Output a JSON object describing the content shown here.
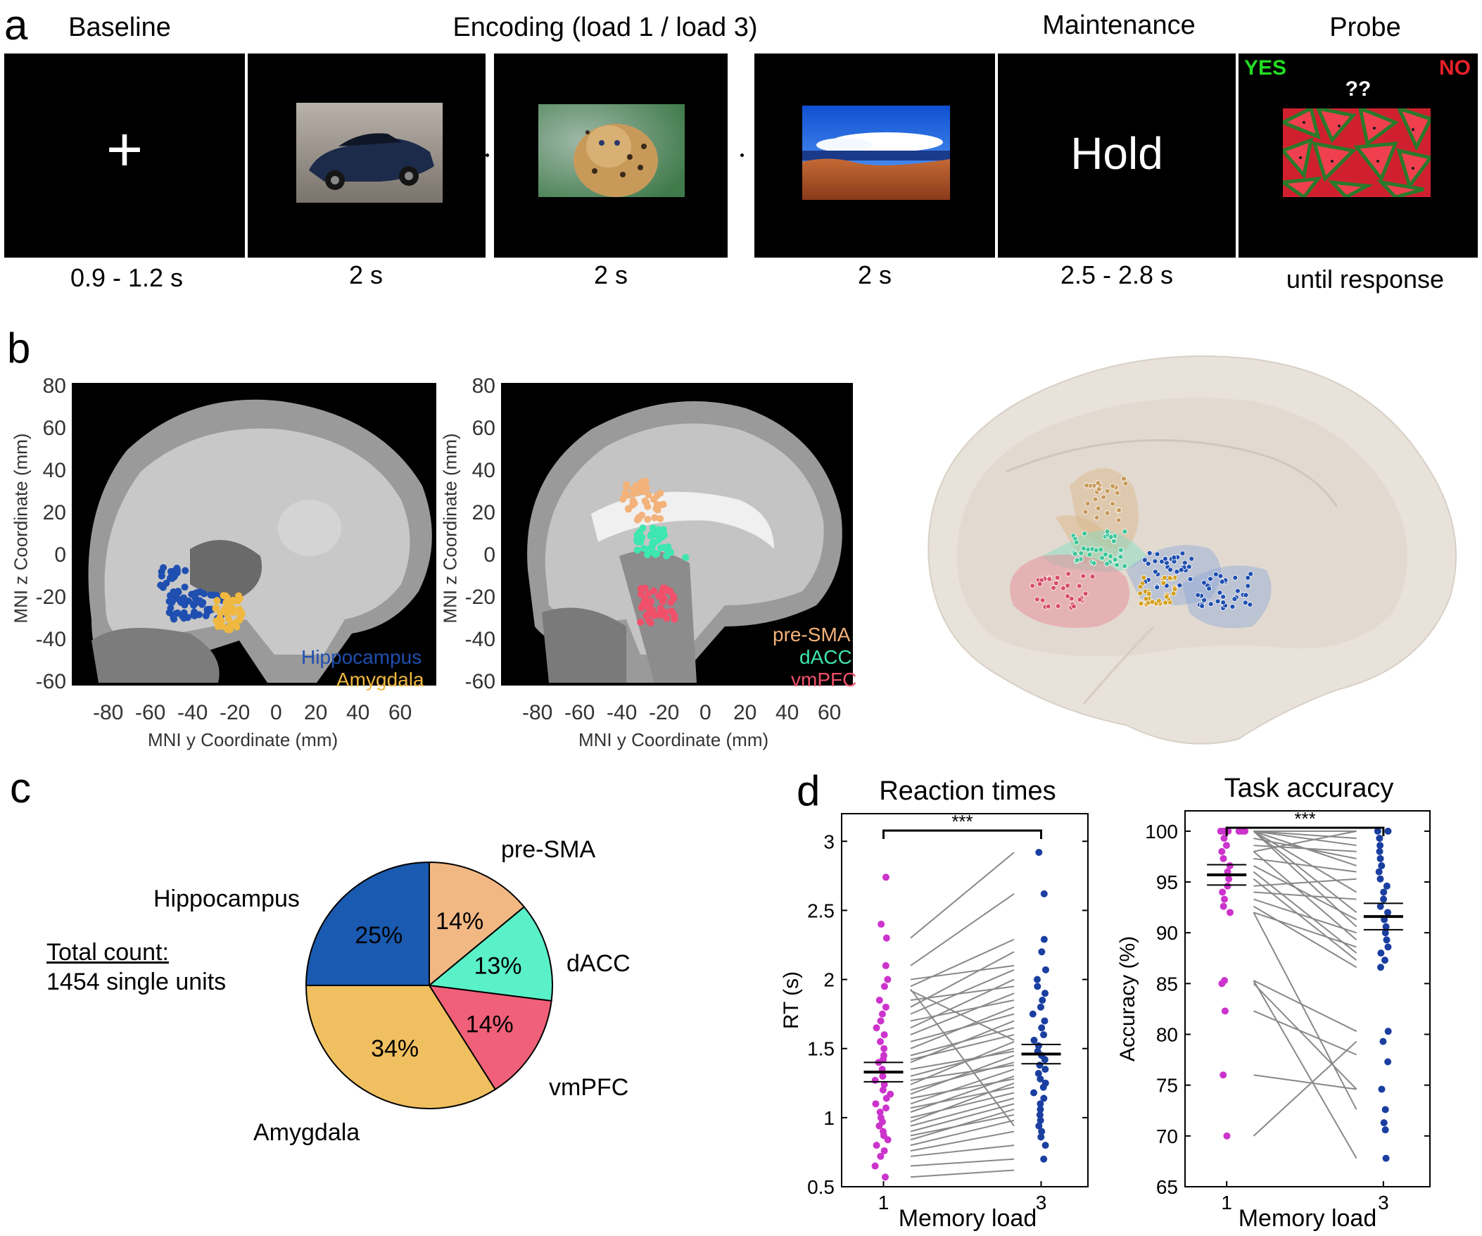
{
  "panel_a": {
    "letter": "a",
    "headers": {
      "baseline": "Baseline",
      "encoding": "Encoding (load 1 / load 3)",
      "maintenance": "Maintenance",
      "probe": "Probe"
    },
    "durations": [
      "0.9 - 1.2 s",
      "2 s",
      "2 s",
      "2 s",
      "2.5 - 2.8 s",
      "until response"
    ],
    "fixation": "+",
    "hold": "Hold",
    "probe_yes": "YES",
    "probe_no": "NO",
    "probe_question": "??",
    "colors": {
      "yes": "#22dd22",
      "no": "#e8202a"
    }
  },
  "panel_b": {
    "letter": "b",
    "left": {
      "ylabel": "MNI z Coordinate (mm)",
      "xlabel": "MNI y Coordinate (mm)",
      "yticks": [
        "80",
        "60",
        "40",
        "20",
        "0",
        "-20",
        "-40",
        "-60"
      ],
      "xticks": [
        "-80",
        "-60",
        "-40",
        "-20",
        "0",
        "20",
        "40",
        "60"
      ],
      "legend": [
        {
          "name": "Hippocampus",
          "color": "#1f4fb0"
        },
        {
          "name": "Amygdala",
          "color": "#f0b840"
        }
      ]
    },
    "right": {
      "ylabel": "MNI z Coordinate (mm)",
      "xlabel": "MNI y Coordinate (mm)",
      "yticks": [
        "80",
        "60",
        "40",
        "20",
        "0",
        "-20",
        "-40",
        "-60"
      ],
      "xticks": [
        "-80",
        "-60",
        "-40",
        "-20",
        "0",
        "20",
        "40",
        "60"
      ],
      "legend": [
        {
          "name": "pre-SMA",
          "color": "#f2b27a"
        },
        {
          "name": "dACC",
          "color": "#3ee6b0"
        },
        {
          "name": "vmPFC",
          "color": "#f0506a"
        }
      ]
    }
  },
  "panel_c": {
    "letter": "c",
    "total_title": "Total count:",
    "total_value": "1454 single units",
    "chart_data": {
      "type": "pie",
      "slices": [
        {
          "label": "pre-SMA",
          "percent_label": "14%",
          "value": 14,
          "color": "#f2b884"
        },
        {
          "label": "dACC",
          "percent_label": "13%",
          "value": 13,
          "color": "#5af0c8"
        },
        {
          "label": "vmPFC",
          "percent_label": "14%",
          "value": 14,
          "color": "#f06078"
        },
        {
          "label": "Amygdala",
          "percent_label": "34%",
          "value": 34,
          "color": "#f0c060"
        },
        {
          "label": "Hippocampus",
          "percent_label": "25%",
          "value": 25,
          "color": "#1a5ab0"
        }
      ]
    }
  },
  "panel_d": {
    "letter": "d",
    "chart_data": [
      {
        "type": "scatter",
        "title": "Reaction times",
        "xlabel": "Memory load",
        "ylabel": "RT (s)",
        "xticks": [
          "1",
          "3"
        ],
        "yticks": [
          "0.5",
          "1",
          "1.5",
          "2",
          "2.5",
          "3"
        ],
        "ylim": [
          0.5,
          3.2
        ],
        "significance": "***",
        "series": [
          {
            "name": "1",
            "color": "#cc33cc",
            "mean": 1.33,
            "sem": 0.07,
            "values": [
              2.74,
              2.4,
              2.3,
              2.1,
              2.0,
              1.95,
              1.85,
              1.8,
              1.75,
              1.7,
              1.65,
              1.6,
              1.55,
              1.5,
              1.45,
              1.42,
              1.4,
              1.35,
              1.3,
              1.27,
              1.24,
              1.2,
              1.17,
              1.14,
              1.1,
              1.07,
              1.04,
              1.0,
              0.97,
              0.94,
              0.9,
              0.87,
              0.84,
              0.8,
              0.76,
              0.72,
              0.65,
              0.57
            ]
          },
          {
            "name": "3",
            "color": "#1a3fa0",
            "mean": 1.46,
            "sem": 0.07,
            "values": [
              2.92,
              2.62,
              2.29,
              2.2,
              2.07,
              2.0,
              1.95,
              1.9,
              1.85,
              1.8,
              1.75,
              1.7,
              1.65,
              1.6,
              1.56,
              1.52,
              1.48,
              1.45,
              1.42,
              1.38,
              1.35,
              1.32,
              1.28,
              1.25,
              1.22,
              1.18,
              1.14,
              1.1,
              1.06,
              1.02,
              0.98,
              0.94,
              0.9,
              0.86,
              0.8,
              0.7
            ]
          }
        ],
        "pairs": [
          [
            0.57,
            0.62
          ],
          [
            0.65,
            0.7
          ],
          [
            0.72,
            0.8
          ],
          [
            0.76,
            0.9
          ],
          [
            0.8,
            0.98
          ],
          [
            0.84,
            1.06
          ],
          [
            0.87,
            1.02
          ],
          [
            0.9,
            1.1
          ],
          [
            0.94,
            1.14
          ],
          [
            0.97,
            1.25
          ],
          [
            1.0,
            1.18
          ],
          [
            1.04,
            1.3
          ],
          [
            1.07,
            1.22
          ],
          [
            1.1,
            1.35
          ],
          [
            1.14,
            1.28
          ],
          [
            1.17,
            1.45
          ],
          [
            1.2,
            1.4
          ],
          [
            1.24,
            1.55
          ],
          [
            1.27,
            1.38
          ],
          [
            1.3,
            1.5
          ],
          [
            1.35,
            1.48
          ],
          [
            1.4,
            1.7
          ],
          [
            1.42,
            1.6
          ],
          [
            1.45,
            1.65
          ],
          [
            1.5,
            1.8
          ],
          [
            1.55,
            1.75
          ],
          [
            1.6,
            1.9
          ],
          [
            1.65,
            2.0
          ],
          [
            1.7,
            1.85
          ],
          [
            1.75,
            2.07
          ],
          [
            1.8,
            2.2
          ],
          [
            1.85,
            1.95
          ],
          [
            1.95,
            2.29
          ],
          [
            2.0,
            2.1
          ],
          [
            2.1,
            2.62
          ],
          [
            2.3,
            2.92
          ],
          [
            1.93,
            0.94
          ],
          [
            1.92,
            1.56
          ]
        ]
      },
      {
        "type": "scatter",
        "title": "Task accuracy",
        "xlabel": "Memory load",
        "ylabel": "Accuracy (%)",
        "xticks": [
          "1",
          "3"
        ],
        "yticks": [
          "65",
          "70",
          "75",
          "80",
          "85",
          "90",
          "95",
          "100"
        ],
        "ylim": [
          65,
          102
        ],
        "significance": "***",
        "series": [
          {
            "name": "1",
            "color": "#cc33cc",
            "mean": 95.7,
            "sem": 1.0,
            "values": [
              100,
              100,
              100,
              100,
              100,
              100,
              100,
              99.3,
              98.6,
              98.0,
              97.3,
              96.6,
              96.0,
              95.3,
              94.6,
              94.0,
              93.3,
              92.6,
              92.0,
              85.3,
              85.0,
              82.3,
              76.0,
              70.0
            ]
          },
          {
            "name": "3",
            "color": "#1a3fa0",
            "mean": 91.6,
            "sem": 1.3,
            "values": [
              100,
              100,
              99.3,
              98.6,
              98.0,
              97.3,
              96.6,
              96.0,
              95.3,
              94.6,
              94.0,
              93.3,
              92.6,
              92.0,
              91.3,
              90.6,
              90.0,
              89.3,
              88.6,
              88.0,
              87.3,
              86.6,
              80.3,
              79.3,
              77.3,
              74.6,
              72.6,
              71.3,
              70.6,
              67.8
            ]
          }
        ],
        "pairs": [
          [
            100,
            100
          ],
          [
            100,
            99.3
          ],
          [
            100,
            98.6
          ],
          [
            100,
            96.6
          ],
          [
            100,
            94.0
          ],
          [
            100,
            92.0
          ],
          [
            100,
            90.6
          ],
          [
            99.3,
            97.3
          ],
          [
            98.6,
            98.0
          ],
          [
            98.0,
            89.3
          ],
          [
            97.3,
            96.0
          ],
          [
            96.6,
            91.3
          ],
          [
            96.0,
            88.0
          ],
          [
            95.3,
            87.3
          ],
          [
            94.6,
            95.3
          ],
          [
            94.0,
            93.3
          ],
          [
            93.3,
            90.0
          ],
          [
            92.6,
            86.6
          ],
          [
            92.0,
            88.6
          ],
          [
            85.3,
            80.3
          ],
          [
            85.0,
            74.6
          ],
          [
            82.3,
            78.0
          ],
          [
            76.0,
            74.6
          ],
          [
            70.0,
            79.3
          ],
          [
            92.0,
            72.6
          ],
          [
            85.3,
            67.8
          ],
          [
            98.0,
            100
          ]
        ]
      }
    ]
  }
}
